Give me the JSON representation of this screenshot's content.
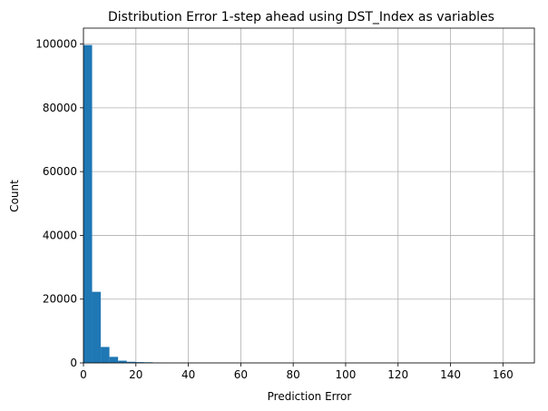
{
  "chart_data": {
    "type": "bar",
    "title": "Distribution Error 1-step ahead using DST_Index as variables",
    "xlabel": "Prediction Error",
    "ylabel": "Count",
    "xlim": [
      0,
      172
    ],
    "ylim": [
      0,
      105000
    ],
    "xticks": [
      0,
      20,
      40,
      60,
      80,
      100,
      120,
      140,
      160
    ],
    "yticks": [
      0,
      20000,
      40000,
      60000,
      80000,
      100000
    ],
    "grid": true,
    "bin_width": 3.3,
    "bins": [
      {
        "x0": 0.0,
        "x1": 3.3,
        "count": 99700
      },
      {
        "x0": 3.3,
        "x1": 6.6,
        "count": 22300
      },
      {
        "x0": 6.6,
        "x1": 9.9,
        "count": 5000
      },
      {
        "x0": 9.9,
        "x1": 13.2,
        "count": 1900
      },
      {
        "x0": 13.2,
        "x1": 16.5,
        "count": 700
      },
      {
        "x0": 16.5,
        "x1": 19.8,
        "count": 350
      },
      {
        "x0": 19.8,
        "x1": 23.1,
        "count": 250
      },
      {
        "x0": 23.1,
        "x1": 26.4,
        "count": 200
      },
      {
        "x0": 26.4,
        "x1": 29.7,
        "count": 60
      },
      {
        "x0": 29.7,
        "x1": 33.0,
        "count": 30
      },
      {
        "x0": 33.0,
        "x1": 36.3,
        "count": 15
      }
    ],
    "bar_color": "#1f77b4",
    "grid_color": "#b0b0b0"
  }
}
